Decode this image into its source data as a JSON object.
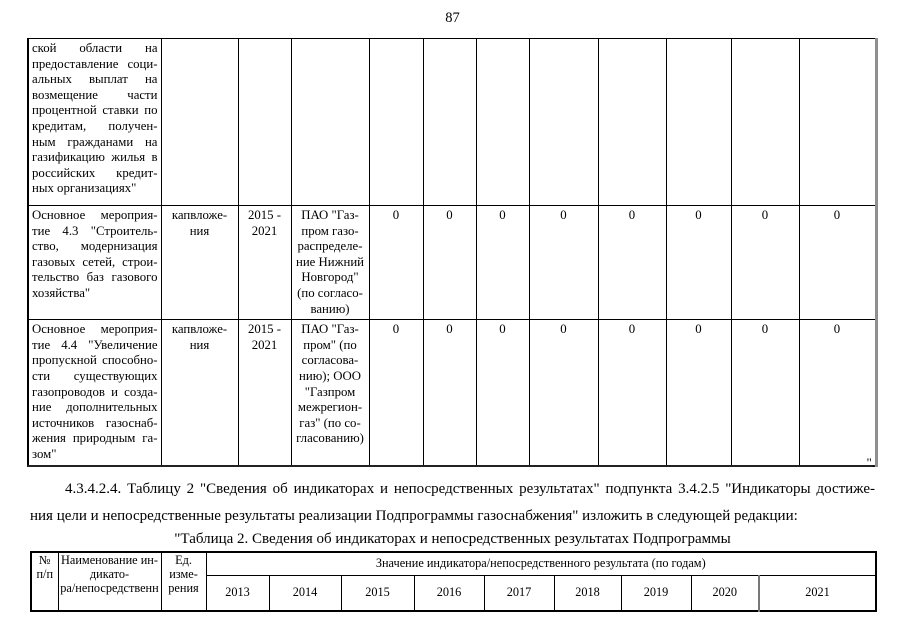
{
  "page": {
    "number": "87"
  },
  "top_table": {
    "rows": [
      {
        "name_lines": [
          "ской области на",
          "предоставление соци-",
          "альных выплат на",
          "возмещение части",
          "процентной ставки по",
          "кредитам, получен-",
          "ным гражданами на",
          "газификацию жилья в",
          "российских кредит-",
          "ных организациях\""
        ],
        "unit_lines": [],
        "period_lines": [],
        "source_lines": [],
        "values": [
          "",
          "",
          "",
          "",
          "",
          "",
          "",
          ""
        ]
      },
      {
        "name_lines": [
          "Основное мероприя-",
          "тие 4.3 \"Строитель-",
          "ство, модернизация",
          "газовых сетей, строи-",
          "тельство баз газового",
          "хозяйства\""
        ],
        "unit_lines": [
          "капвложе-",
          "ния"
        ],
        "period_lines": [
          "2015 -",
          "2021"
        ],
        "source_lines": [
          "ПАО \"Газ-",
          "пром газо-",
          "распределе-",
          "ние Нижний",
          "Новгород\"",
          "(по согласо-",
          "ванию)"
        ],
        "values": [
          "0",
          "0",
          "0",
          "0",
          "0",
          "0",
          "0",
          "0"
        ]
      },
      {
        "name_lines": [
          "Основное мероприя-",
          "тие 4.4 \"Увеличение",
          "пропускной способно-",
          "сти существующих",
          "газопроводов и созда-",
          "ние дополнительных",
          "источников газоснаб-",
          "жения природным га-",
          "зом\""
        ],
        "unit_lines": [
          "капвложе-",
          "ния"
        ],
        "period_lines": [
          "2015 -",
          "2021"
        ],
        "source_lines": [
          "ПАО \"Газ-",
          "пром\" (по",
          "согласова-",
          "нию); ООО",
          "\"Газпром",
          "межрегион-",
          "газ\" (по со-",
          "гласованию)"
        ],
        "values": [
          "0",
          "0",
          "0",
          "0",
          "0",
          "0",
          "0",
          "0"
        ]
      }
    ],
    "closing_mark": "\"."
  },
  "paragraph": {
    "line1": "4.3.4.2.4. Таблицу 2 \"Сведения об индикаторах и непосредственных результатах\" подпункта 3.4.2.5 \"Индикаторы достиже-",
    "line2": "ния цели и непосредственные результаты реализации Подпрограммы газоснабжения\" изложить в следующей редакции:"
  },
  "table2": {
    "title": "\"Таблица 2. Сведения об индикаторах и непосредственных результатах Подпрограммы",
    "col_num": "№\nп/п",
    "col_name": "Наименование ин-\nдикато-\nра/непосредственн",
    "col_unit": "Ед.\nизме-\nрения",
    "col_value": "Значение индикатора/непосредственного результата (по годам)",
    "years": [
      "2013",
      "2014",
      "2015",
      "2016",
      "2017",
      "2018",
      "2019",
      "2020",
      "2021"
    ]
  }
}
